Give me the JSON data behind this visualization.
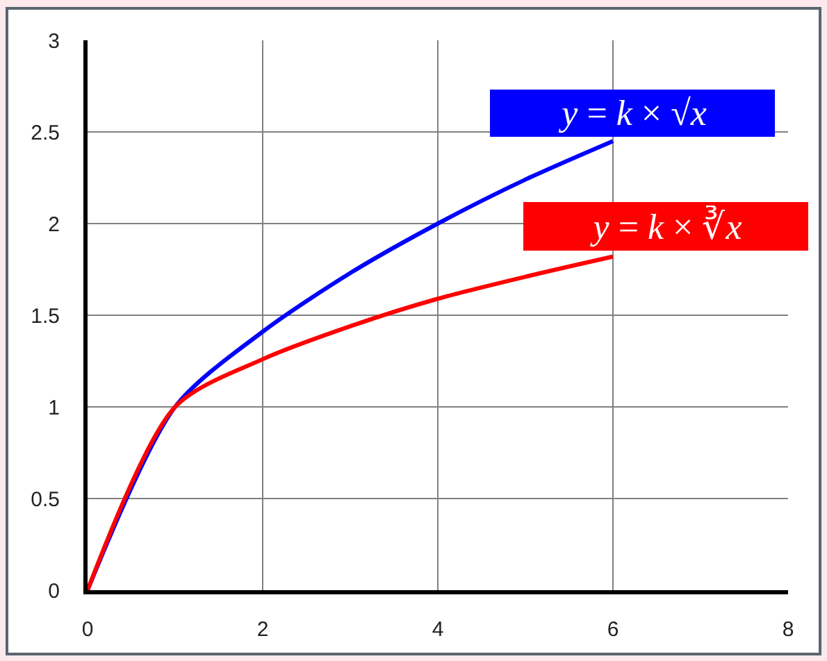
{
  "chart_data": {
    "type": "line",
    "x": [
      0,
      1,
      2,
      3,
      4,
      5,
      6
    ],
    "series": [
      {
        "name": "y = k × √x",
        "color": "#0000ff",
        "values": [
          0,
          1,
          1.41,
          1.73,
          2,
          2.24,
          2.45
        ]
      },
      {
        "name": "y = k × ∛x",
        "color": "#ff0000",
        "values": [
          0,
          1,
          1.26,
          1.44,
          1.59,
          1.71,
          1.82
        ]
      }
    ],
    "xlim": [
      0,
      8
    ],
    "xticks": [
      0,
      2,
      4,
      6,
      8
    ],
    "ylim": [
      0,
      3
    ],
    "yticks": [
      0,
      0.5,
      1,
      1.5,
      2,
      2.5,
      3
    ],
    "grid": true,
    "line_style": "solid"
  }
}
